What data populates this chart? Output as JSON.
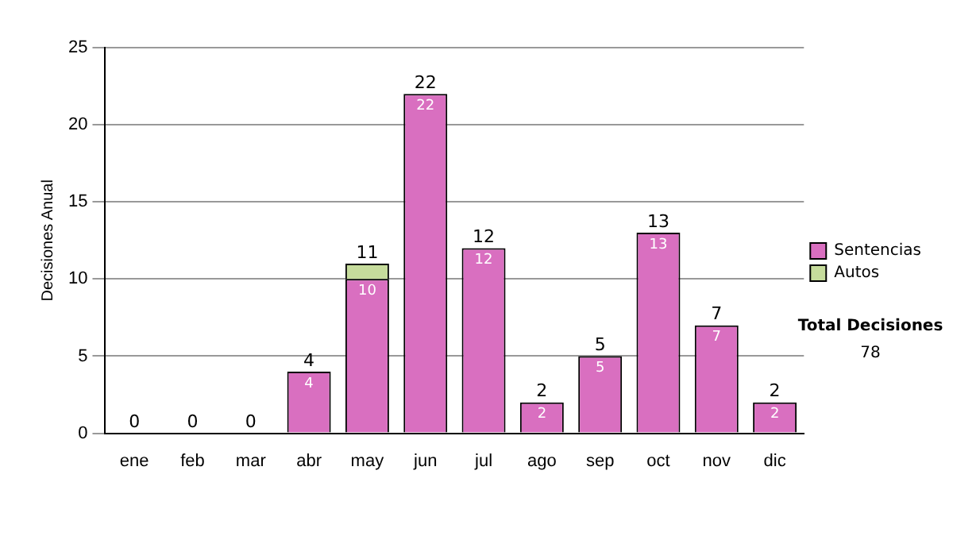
{
  "chart_data": {
    "type": "bar",
    "stacked": true,
    "ylabel": "Decisiones Anual",
    "categories": [
      "ene",
      "feb",
      "mar",
      "abr",
      "may",
      "jun",
      "jul",
      "ago",
      "sep",
      "oct",
      "nov",
      "dic"
    ],
    "series": [
      {
        "name": "Sentencias",
        "color": "#d96fc0",
        "values": [
          0,
          0,
          0,
          4,
          10,
          22,
          12,
          2,
          5,
          13,
          7,
          2
        ],
        "value_labels": [
          null,
          null,
          null,
          "4",
          "10",
          "22",
          "12",
          "2",
          "5",
          "13",
          "7",
          "2"
        ]
      },
      {
        "name": "Autos",
        "color": "#c6dc9c",
        "values": [
          0,
          0,
          0,
          0,
          1,
          0,
          0,
          0,
          0,
          0,
          0,
          0
        ]
      }
    ],
    "totals": [
      "0",
      "0",
      "0",
      "4",
      "11",
      "22",
      "12",
      "2",
      "5",
      "13",
      "7",
      "2"
    ],
    "ylim": [
      0,
      25
    ],
    "yticks": [
      0,
      5,
      10,
      15,
      20,
      25
    ],
    "grid": "y",
    "legend": "right",
    "annotations": [
      "Total Decisiones",
      "78"
    ]
  }
}
